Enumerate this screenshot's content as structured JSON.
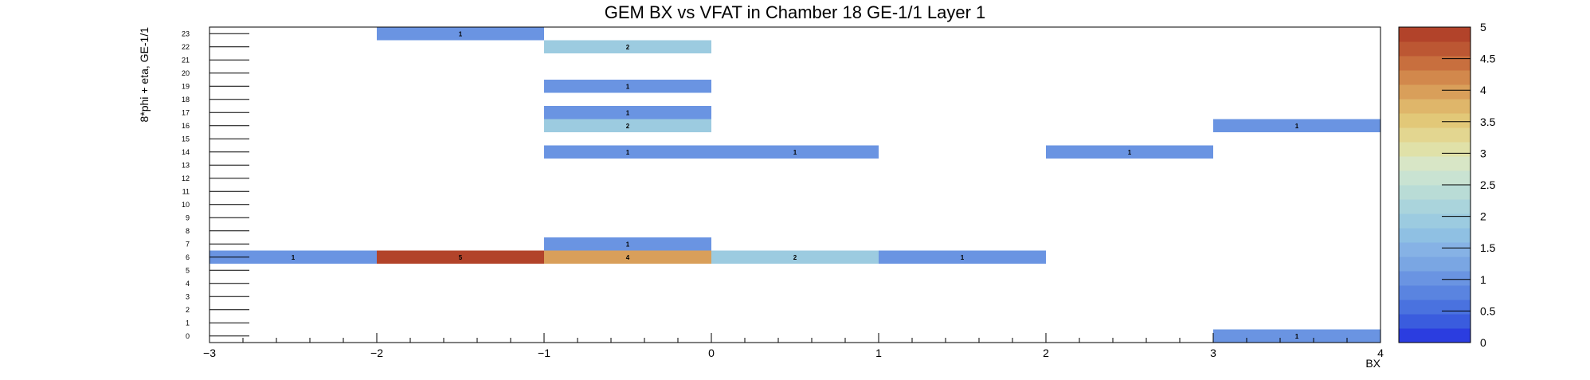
{
  "chart_data": {
    "type": "heatmap",
    "title": "GEM BX vs VFAT in Chamber 18 GE-1/1 Layer 1",
    "xlabel": "BX",
    "ylabel": "8*phi + eta, GE-1/1",
    "xlim": [
      -3,
      4
    ],
    "ylim": [
      0,
      24
    ],
    "zlim": [
      0,
      5
    ],
    "x_ticks": [
      "−3",
      "−2",
      "−1",
      "0",
      "1",
      "2",
      "3",
      "4"
    ],
    "y_ticks": [
      "0",
      "1",
      "2",
      "3",
      "4",
      "5",
      "6",
      "7",
      "8",
      "9",
      "10",
      "11",
      "12",
      "13",
      "14",
      "15",
      "16",
      "17",
      "18",
      "19",
      "20",
      "21",
      "22",
      "23"
    ],
    "z_ticks": [
      "0",
      "0.5",
      "1",
      "1.5",
      "2",
      "2.5",
      "3",
      "3.5",
      "4",
      "4.5",
      "5"
    ],
    "legend": "colorbar-right",
    "cells": [
      {
        "x": -2,
        "y": 23,
        "value": 1
      },
      {
        "x": -1,
        "y": 22,
        "value": 2
      },
      {
        "x": -1,
        "y": 19,
        "value": 1
      },
      {
        "x": -1,
        "y": 17,
        "value": 1
      },
      {
        "x": -1,
        "y": 16,
        "value": 2
      },
      {
        "x": 3,
        "y": 16,
        "value": 1
      },
      {
        "x": -1,
        "y": 14,
        "value": 1
      },
      {
        "x": 0,
        "y": 14,
        "value": 1
      },
      {
        "x": 2,
        "y": 14,
        "value": 1
      },
      {
        "x": -1,
        "y": 7,
        "value": 1
      },
      {
        "x": -3,
        "y": 6,
        "value": 1
      },
      {
        "x": -2,
        "y": 6,
        "value": 5
      },
      {
        "x": -1,
        "y": 6,
        "value": 4
      },
      {
        "x": 0,
        "y": 6,
        "value": 2
      },
      {
        "x": 1,
        "y": 6,
        "value": 1
      },
      {
        "x": 3,
        "y": 0,
        "value": 1
      }
    ],
    "palette": [
      "#2b3de0",
      "#3a5cde",
      "#4a72df",
      "#5a84e0",
      "#6a94e2",
      "#7aa6e3",
      "#86b2e5",
      "#8fc0e3",
      "#9ccbe0",
      "#aad4dc",
      "#b9dcd6",
      "#c9e3d2",
      "#d8e6c6",
      "#e0e1a8",
      "#e3d690",
      "#e2c878",
      "#dfb66a",
      "#d99f5a",
      "#d2884c",
      "#c86f3e",
      "#bc5733",
      "#b2432a"
    ]
  }
}
